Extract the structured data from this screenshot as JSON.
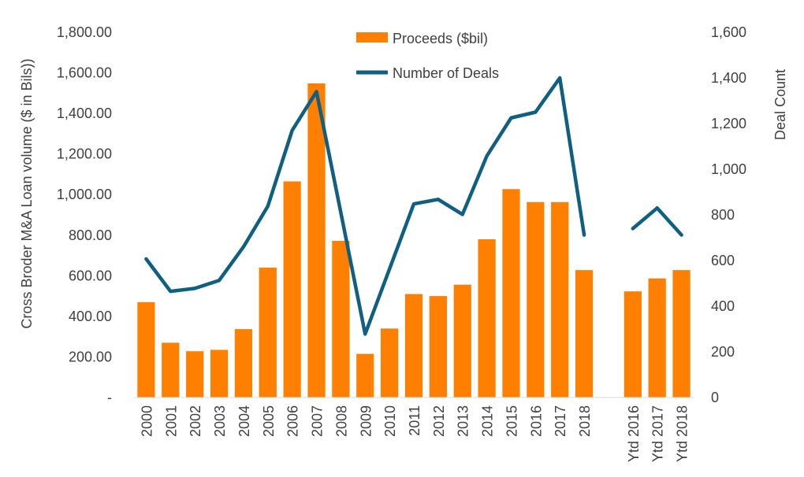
{
  "chart_data": {
    "type": "bar+line",
    "categories": [
      "2000",
      "2001",
      "2002",
      "2003",
      "2004",
      "2005",
      "2006",
      "2007",
      "2008",
      "2009",
      "2010",
      "2011",
      "2012",
      "2013",
      "2014",
      "2015",
      "2016",
      "2017",
      "2018",
      "",
      "Ytd 2016",
      "Ytd 2017",
      "Ytd 2018"
    ],
    "series": [
      {
        "name": "Proceeds ($bil)",
        "type": "bar",
        "axis": "left",
        "color": "#ff8000",
        "values": [
          470,
          270,
          228,
          235,
          337,
          640,
          1065,
          1548,
          772,
          215,
          340,
          510,
          500,
          556,
          780,
          1027,
          963,
          963,
          628,
          null,
          523,
          587,
          628
        ]
      },
      {
        "name": "Number of Deals",
        "type": "line",
        "axis": "right",
        "color": "#0f5f82",
        "values": [
          607,
          465,
          478,
          513,
          660,
          838,
          1170,
          1340,
          810,
          278,
          563,
          848,
          868,
          802,
          1058,
          1225,
          1250,
          1400,
          712,
          null,
          740,
          830,
          712
        ]
      }
    ],
    "y_left": {
      "label": "Cross Broder M&A Loan volume ($ in Bils))",
      "min": 0,
      "max": 1800,
      "step": 200,
      "tick_labels": [
        "-",
        "200.00",
        "400.00",
        "600.00",
        "800.00",
        "1,000.00",
        "1,200.00",
        "1,400.00",
        "1,600.00",
        "1,800.00"
      ]
    },
    "y_right": {
      "label": "Deal Count",
      "min": 0,
      "max": 1600,
      "step": 200,
      "tick_labels": [
        "0",
        "200",
        "400",
        "600",
        "800",
        "1,000",
        "1,200",
        "1,400",
        "1,600"
      ]
    },
    "legend": {
      "position": "top-center"
    },
    "grid": false
  }
}
